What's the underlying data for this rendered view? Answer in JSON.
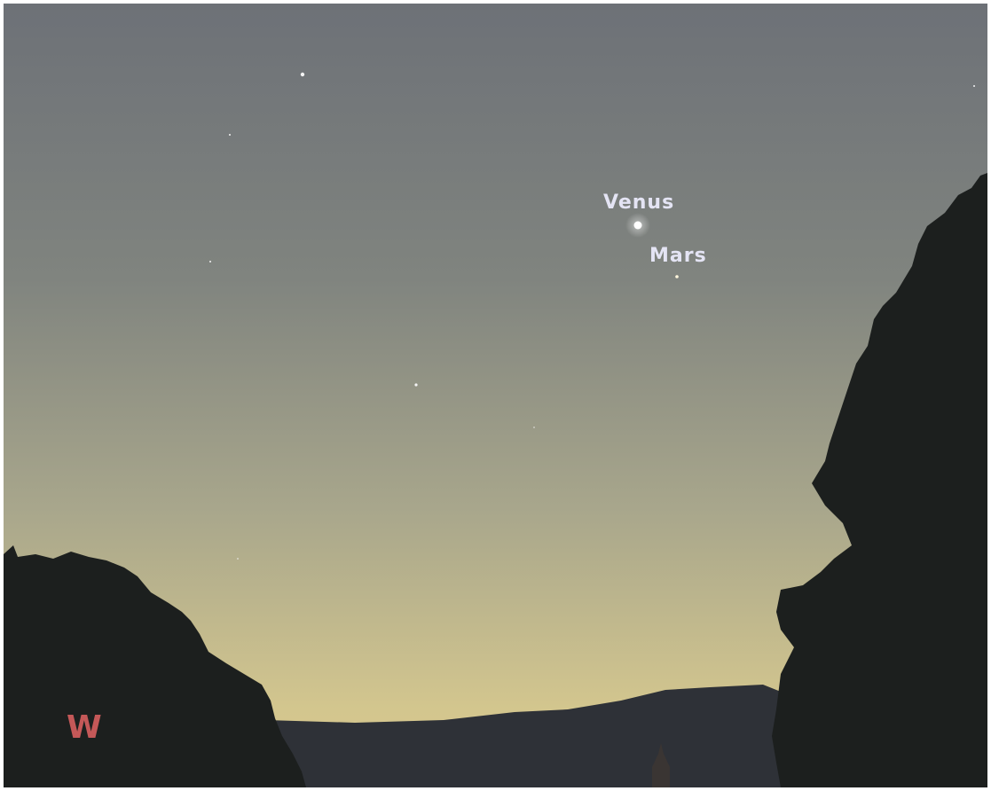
{
  "sky_labels": [
    {
      "label": "Venus"
    },
    {
      "label": "Mars"
    }
  ],
  "compass": {
    "direction": "W"
  }
}
